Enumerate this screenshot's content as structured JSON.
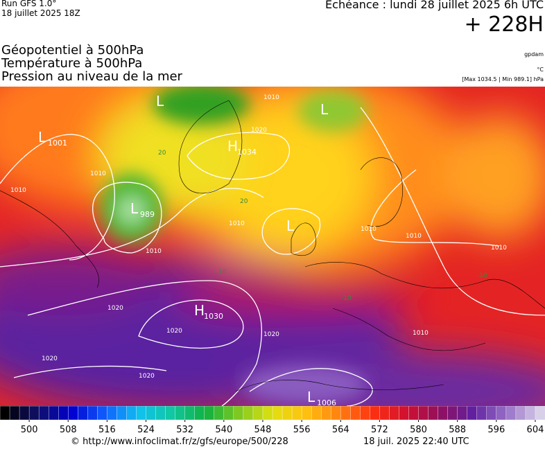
{
  "header": {
    "run": "Run GFS 1.0°",
    "run_date": "18 juillet 2025 18Z",
    "valid": "Echéance : lundi 28 juillet 2025 6h UTC",
    "lead": "+ 228H"
  },
  "titles": [
    "Géopotentiel à 500hPa",
    "Température à 500hPa",
    "Pression au niveau de la mer"
  ],
  "units": [
    "gpdam",
    "°C",
    "[Max 1034.5 | Min 989.1] hPa"
  ],
  "map": {
    "centers": [
      {
        "letter": "L",
        "value": 1001
      },
      {
        "letter": "H",
        "value": 1034
      },
      {
        "letter": "L",
        "value": 989
      },
      {
        "letter": "H",
        "value": 1030
      },
      {
        "letter": "L",
        "value": 1006
      },
      {
        "letter": "L"
      },
      {
        "letter": "L"
      },
      {
        "letter": "L"
      }
    ],
    "isobar_labels": [
      1010,
      1010,
      1010,
      1010,
      1020,
      1020,
      1020,
      1020,
      1020,
      1010,
      1010,
      1010,
      1010,
      1010,
      1020
    ],
    "temperature_labels": [
      20,
      20,
      -10,
      -10,
      -10
    ]
  },
  "colorbar": {
    "range": [
      494,
      606
    ],
    "ticks": [
      500,
      508,
      516,
      524,
      532,
      540,
      548,
      556,
      564,
      572,
      580,
      588,
      596,
      604
    ]
  },
  "footer": {
    "url": "© http://www.infoclimat.fr/z/gfs/europe/500/228",
    "time": "18 juil. 2025 22:40 UTC"
  }
}
